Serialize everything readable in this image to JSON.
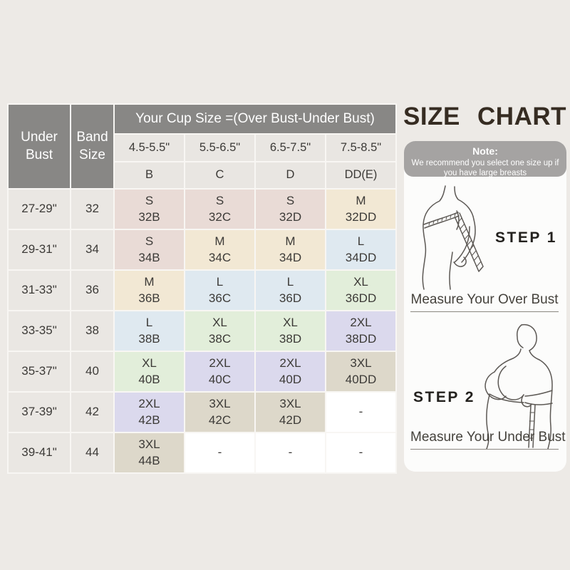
{
  "page": {
    "background": "#edeae6"
  },
  "chart_data": {
    "type": "table",
    "title": "SIZE  CHART",
    "cup_header": "Your Cup Size =(Over Bust-Under Bust)",
    "corner_headers": [
      "Under Bust",
      "Band Size"
    ],
    "diff_ranges": [
      "4.5-5.5\"",
      "5.5-6.5\"",
      "6.5-7.5\"",
      "7.5-8.5\""
    ],
    "cup_letters": [
      "B",
      "C",
      "D",
      "DD(E)"
    ],
    "rows": [
      {
        "under_bust": "27-29\"",
        "band": "32",
        "cells": [
          {
            "size": "S",
            "code": "32B"
          },
          {
            "size": "S",
            "code": "32C"
          },
          {
            "size": "S",
            "code": "32D"
          },
          {
            "size": "M",
            "code": "32DD"
          }
        ]
      },
      {
        "under_bust": "29-31\"",
        "band": "34",
        "cells": [
          {
            "size": "S",
            "code": "34B"
          },
          {
            "size": "M",
            "code": "34C"
          },
          {
            "size": "M",
            "code": "34D"
          },
          {
            "size": "L",
            "code": "34DD"
          }
        ]
      },
      {
        "under_bust": "31-33\"",
        "band": "36",
        "cells": [
          {
            "size": "M",
            "code": "36B"
          },
          {
            "size": "L",
            "code": "36C"
          },
          {
            "size": "L",
            "code": "36D"
          },
          {
            "size": "XL",
            "code": "36DD"
          }
        ]
      },
      {
        "under_bust": "33-35\"",
        "band": "38",
        "cells": [
          {
            "size": "L",
            "code": "38B"
          },
          {
            "size": "XL",
            "code": "38C"
          },
          {
            "size": "XL",
            "code": "38D"
          },
          {
            "size": "2XL",
            "code": "38DD"
          }
        ]
      },
      {
        "under_bust": "35-37\"",
        "band": "40",
        "cells": [
          {
            "size": "XL",
            "code": "40B"
          },
          {
            "size": "2XL",
            "code": "40C"
          },
          {
            "size": "2XL",
            "code": "40D"
          },
          {
            "size": "3XL",
            "code": "40DD"
          }
        ]
      },
      {
        "under_bust": "37-39\"",
        "band": "42",
        "cells": [
          {
            "size": "2XL",
            "code": "42B"
          },
          {
            "size": "3XL",
            "code": "42C"
          },
          {
            "size": "3XL",
            "code": "42D"
          },
          {
            "size": "-",
            "code": ""
          }
        ]
      },
      {
        "under_bust": "39-41\"",
        "band": "44",
        "cells": [
          {
            "size": "3XL",
            "code": "44B"
          },
          {
            "size": "-",
            "code": ""
          },
          {
            "size": "-",
            "code": ""
          },
          {
            "size": "-",
            "code": ""
          }
        ]
      }
    ]
  },
  "size_colors": {
    "S": "#e9dbd6",
    "M": "#f2e8d4",
    "L": "#dfe9f0",
    "XL": "#e2eeda",
    "2XL": "#dbd9ed",
    "3XL": "#ddd8ca",
    "-": "#ffffff"
  },
  "colors": {
    "header_bg": "#888785",
    "header_text": "#ffffff",
    "label_bg": "#eae7e3",
    "grid_line": "#f8f6f3",
    "title_text": "#362c22",
    "note_bg": "#a5a3a2"
  },
  "side_panel": {
    "title": "SIZE  CHART",
    "note_title": "Note:",
    "note_body": "We recommend you select one size up if you have large breasts",
    "steps": [
      {
        "label": "STEP 1",
        "caption": "Measure Your Over Bust"
      },
      {
        "label": "STEP 2",
        "caption": "Measure Your Under Bust"
      }
    ]
  }
}
